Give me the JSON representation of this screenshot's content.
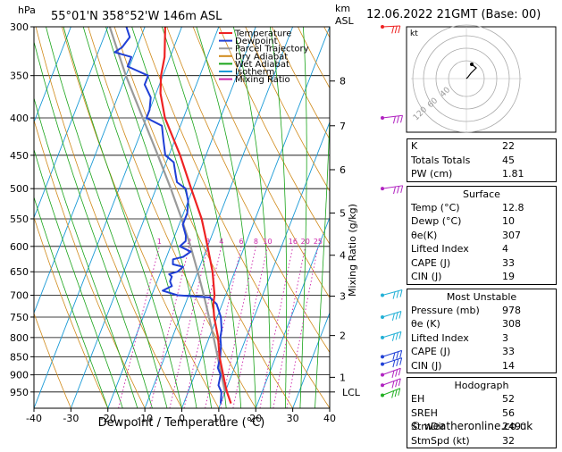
{
  "header": {
    "hpa_label": "hPa",
    "location": "55°01'N 358°52'W 146m ASL",
    "km_label": "km",
    "asl_label": "ASL",
    "datetime": "12.06.2022 21GMT (Base: 00)"
  },
  "colors": {
    "temperature": "#ee2222",
    "dewpoint": "#1f3fd6",
    "parcel": "#9a9a9a",
    "dry_adiabat": "#d08a1a",
    "wet_adiabat": "#19a419",
    "isotherm": "#1a9ad6",
    "mixing_ratio": "#cc22aa"
  },
  "legend": [
    {
      "label": "Temperature",
      "color": "#ee2222"
    },
    {
      "label": "Dewpoint",
      "color": "#1f3fd6"
    },
    {
      "label": "Parcel Trajectory",
      "color": "#9a9a9a"
    },
    {
      "label": "Dry Adiabat",
      "color": "#d08a1a"
    },
    {
      "label": "Wet Adiabat",
      "color": "#19a419"
    },
    {
      "label": "Isotherm",
      "color": "#1a9ad6"
    },
    {
      "label": "Mixing Ratio",
      "color": "#cc22aa"
    }
  ],
  "axes": {
    "xlabel": "Dewpoint / Temperature (°C)",
    "ylabel_right": "Mixing Ratio (g/kg)",
    "lcl_label": "LCL"
  },
  "chart_data": {
    "type": "line",
    "pressure_levels": [
      300,
      350,
      400,
      450,
      500,
      550,
      600,
      650,
      700,
      750,
      800,
      850,
      900,
      950
    ],
    "pressure_labels": [
      "300",
      "350",
      "400",
      "450",
      "500",
      "550",
      "600",
      "650",
      "700",
      "750",
      "800",
      "850",
      "900",
      "950"
    ],
    "x_ticks": [
      -40,
      -30,
      -20,
      -10,
      0,
      10,
      20,
      30,
      40
    ],
    "x_tick_labels": [
      "-40",
      "-30",
      "-20",
      "-10",
      "0",
      "10",
      "20",
      "30",
      "40"
    ],
    "xlim": [
      -40,
      40
    ],
    "ylim": [
      300,
      1000
    ],
    "skew": "40 °C per ln(1000/300)",
    "km_ticks": [
      {
        "p": 950,
        "label": "LCL"
      },
      {
        "p": 907,
        "label": "1"
      },
      {
        "p": 795,
        "label": "2"
      },
      {
        "p": 702,
        "label": "3"
      },
      {
        "p": 617,
        "label": "4"
      },
      {
        "p": 540,
        "label": "5"
      },
      {
        "p": 471,
        "label": "6"
      },
      {
        "p": 410,
        "label": "7"
      },
      {
        "p": 356,
        "label": "8"
      }
    ],
    "mixing_ratio_labels": [
      {
        "w": 1,
        "label": "1"
      },
      {
        "w": 2,
        "label": "2"
      },
      {
        "w": 3,
        "label": "3"
      },
      {
        "w": 4,
        "label": "4"
      },
      {
        "w": 6,
        "label": "6"
      },
      {
        "w": 8,
        "label": "8"
      },
      {
        "w": 10,
        "label": "10"
      },
      {
        "w": 16,
        "label": "16"
      },
      {
        "w": 20,
        "label": "20"
      },
      {
        "w": 25,
        "label": "25"
      }
    ],
    "series": [
      {
        "name": "Temperature",
        "p": [
          985,
          950,
          920,
          900,
          850,
          800,
          750,
          720,
          700,
          650,
          600,
          550,
          500,
          450,
          400,
          370,
          350,
          330,
          300
        ],
        "t": [
          12.8,
          10.5,
          8.8,
          7.7,
          4.8,
          2.4,
          -0.8,
          -2.4,
          -3.0,
          -6.0,
          -10.0,
          -14.5,
          -20.5,
          -27.0,
          -35.0,
          -38.8,
          -40.5,
          -41.5,
          -44.5
        ]
      },
      {
        "name": "Dewpoint",
        "p": [
          985,
          950,
          930,
          900,
          880,
          850,
          820,
          800,
          780,
          750,
          720,
          705,
          700,
          690,
          680,
          670,
          660,
          655,
          650,
          640,
          635,
          625,
          620,
          610,
          600,
          590,
          580,
          560,
          540,
          520,
          500,
          490,
          480,
          460,
          450,
          430,
          410,
          400,
          390,
          375,
          360,
          350,
          340,
          330,
          325,
          320,
          310,
          300
        ],
        "t": [
          10.0,
          9.0,
          7.5,
          7.0,
          5.5,
          5.0,
          4.0,
          3.0,
          2.5,
          1.0,
          -1.5,
          -4.0,
          -13.0,
          -17.5,
          -15.5,
          -16.5,
          -16.5,
          -17.5,
          -15.5,
          -14.5,
          -17.5,
          -18.0,
          -15.5,
          -14.0,
          -17.5,
          -16.5,
          -17.0,
          -19.0,
          -19.0,
          -20.0,
          -22.0,
          -25.0,
          -26.0,
          -28.0,
          -31.0,
          -33.0,
          -35.0,
          -40.0,
          -40.0,
          -41.0,
          -44.0,
          -44.0,
          -50.5,
          -50.5,
          -55.5,
          -54.0,
          -53.0,
          -55.0
        ]
      },
      {
        "name": "Parcel Trajectory",
        "p": [
          950,
          900,
          850,
          800,
          750,
          700,
          650,
          600,
          550,
          500,
          450,
          400,
          350,
          300
        ],
        "t": [
          10.0,
          7.2,
          4.3,
          1.2,
          -2.2,
          -5.9,
          -10.0,
          -14.6,
          -19.9,
          -26.0,
          -33.0,
          -41.0,
          -50.0,
          -59.5
        ]
      }
    ],
    "hodograph": {
      "ring_labels": [
        "40",
        "60",
        "120"
      ],
      "unit_label": "kt"
    }
  },
  "indices": {
    "rows": [
      {
        "label": "K",
        "value": "22"
      },
      {
        "label": "Totals Totals",
        "value": "45"
      },
      {
        "label": "PW (cm)",
        "value": "1.81"
      }
    ]
  },
  "surface": {
    "title": "Surface",
    "rows": [
      {
        "label": "Temp (°C)",
        "value": "12.8"
      },
      {
        "label": "Dewp (°C)",
        "value": "10"
      },
      {
        "label": "θe(K)",
        "value": "307"
      },
      {
        "label": "Lifted Index",
        "value": "4"
      },
      {
        "label": "CAPE (J)",
        "value": "33"
      },
      {
        "label": "CIN (J)",
        "value": "19"
      }
    ]
  },
  "most_unstable": {
    "title": "Most Unstable",
    "rows": [
      {
        "label": "Pressure (mb)",
        "value": "978"
      },
      {
        "label": "θe (K)",
        "value": "308"
      },
      {
        "label": "Lifted Index",
        "value": "3"
      },
      {
        "label": "CAPE (J)",
        "value": "33"
      },
      {
        "label": "CIN (J)",
        "value": "14"
      }
    ]
  },
  "hodograph_table": {
    "title": "Hodograph",
    "rows": [
      {
        "label": "EH",
        "value": "52"
      },
      {
        "label": "SREH",
        "value": "56"
      },
      {
        "label": "StmDir",
        "value": "249°"
      },
      {
        "label": "StmSpd (kt)",
        "value": "32"
      }
    ]
  },
  "footer": {
    "copyright": "© weatheronline.co.uk"
  }
}
